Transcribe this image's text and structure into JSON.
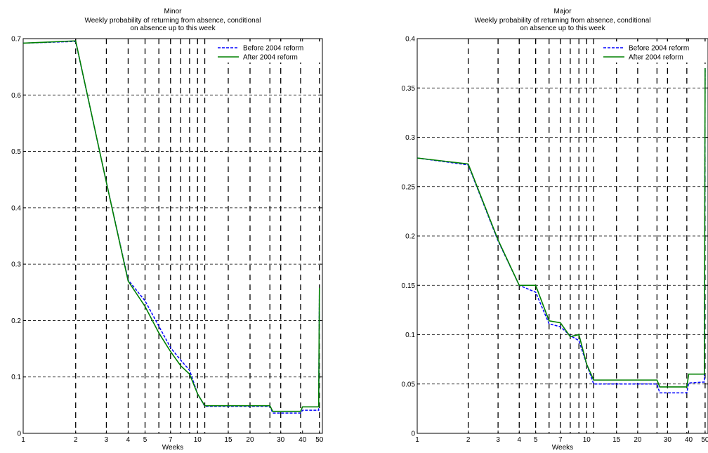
{
  "chart_data": [
    {
      "type": "line",
      "title": "Minor",
      "subtitle_lines": [
        "Weekly probability of returning from absence, conditional",
        "on absence up to this week"
      ],
      "xlabel": "Weeks",
      "ylabel": "",
      "x_scale": "log",
      "xlim": [
        1,
        52
      ],
      "ylim": [
        0,
        0.7
      ],
      "x_ticks": [
        1,
        2,
        3,
        4,
        5,
        7,
        10,
        15,
        20,
        30,
        40,
        50
      ],
      "x_tick_labels": [
        "1",
        "2",
        "3",
        "4",
        "5",
        "7",
        "10",
        "15",
        "20",
        "30",
        "40",
        "50"
      ],
      "y_ticks": [
        0,
        0.1,
        0.2,
        0.3,
        0.4,
        0.5,
        0.6,
        0.7
      ],
      "y_tick_labels": [
        "0",
        "0.1",
        "0.2",
        "0.3",
        "0.4",
        "0.5",
        "0.6",
        "0.7"
      ],
      "grid": true,
      "vertical_dashed_lines_at": [
        2,
        3,
        4,
        5,
        6,
        7,
        8,
        9,
        10,
        11,
        15,
        20,
        26,
        30,
        39,
        50
      ],
      "legend": {
        "position": "top-right"
      },
      "series": [
        {
          "name": "Before 2004 reform",
          "color": "#0000ff",
          "style": "dashed",
          "x": [
            1,
            2,
            3,
            4,
            5,
            6,
            7,
            8,
            9,
            10,
            11,
            26,
            27,
            39,
            40,
            49.5,
            50
          ],
          "y": [
            0.692,
            0.695,
            0.445,
            0.272,
            0.235,
            0.19,
            0.152,
            0.13,
            0.112,
            0.07,
            0.048,
            0.048,
            0.036,
            0.036,
            0.041,
            0.041,
            0.254
          ]
        },
        {
          "name": "After 2004 reform",
          "color": "#008000",
          "style": "solid",
          "x": [
            1,
            2,
            3,
            4,
            5,
            6,
            7,
            8,
            9,
            10,
            11,
            26,
            27,
            39,
            40,
            49.5,
            50
          ],
          "y": [
            0.692,
            0.696,
            0.445,
            0.27,
            0.225,
            0.178,
            0.145,
            0.12,
            0.105,
            0.07,
            0.049,
            0.049,
            0.039,
            0.039,
            0.047,
            0.047,
            0.258
          ]
        }
      ]
    },
    {
      "type": "line",
      "title": "Major",
      "subtitle_lines": [
        "Weekly probability of returning from absence, conditional",
        "on absence up to this week"
      ],
      "xlabel": "Weeks",
      "ylabel": "",
      "x_scale": "log",
      "xlim": [
        1,
        52
      ],
      "ylim": [
        0,
        0.4
      ],
      "x_ticks": [
        1,
        2,
        3,
        4,
        5,
        7,
        10,
        15,
        20,
        30,
        40,
        50
      ],
      "x_tick_labels": [
        "1",
        "2",
        "3",
        "4",
        "5",
        "7",
        "10",
        "15",
        "20",
        "30",
        "40",
        "50"
      ],
      "y_ticks": [
        0,
        0.05,
        0.1,
        0.15,
        0.2,
        0.25,
        0.3,
        0.35,
        0.4
      ],
      "y_tick_labels": [
        "0",
        "0.05",
        "0.1",
        "0.15",
        "0.2",
        "0.25",
        "0.3",
        "0.35",
        "0.4"
      ],
      "grid": true,
      "vertical_dashed_lines_at": [
        2,
        3,
        4,
        5,
        6,
        7,
        8,
        9,
        10,
        11,
        15,
        20,
        26,
        30,
        39,
        50
      ],
      "legend": {
        "position": "top-right"
      },
      "series": [
        {
          "name": "Before 2004 reform",
          "color": "#0000ff",
          "style": "dashed",
          "x": [
            1,
            2,
            3,
            4,
            5,
            6,
            7,
            8,
            9,
            10,
            11,
            26,
            27,
            39,
            40,
            49.5,
            50
          ],
          "y": [
            0.279,
            0.272,
            0.195,
            0.15,
            0.143,
            0.111,
            0.108,
            0.099,
            0.094,
            0.07,
            0.05,
            0.05,
            0.041,
            0.041,
            0.051,
            0.052,
            0.37
          ]
        },
        {
          "name": "After 2004 reform",
          "color": "#008000",
          "style": "solid",
          "x": [
            1,
            2,
            3,
            4,
            5,
            6,
            7,
            8,
            9,
            10,
            11,
            26,
            27,
            39,
            40,
            49.5,
            50
          ],
          "y": [
            0.279,
            0.273,
            0.196,
            0.15,
            0.15,
            0.114,
            0.112,
            0.098,
            0.1,
            0.07,
            0.054,
            0.054,
            0.047,
            0.047,
            0.06,
            0.06,
            0.37
          ]
        }
      ]
    }
  ]
}
